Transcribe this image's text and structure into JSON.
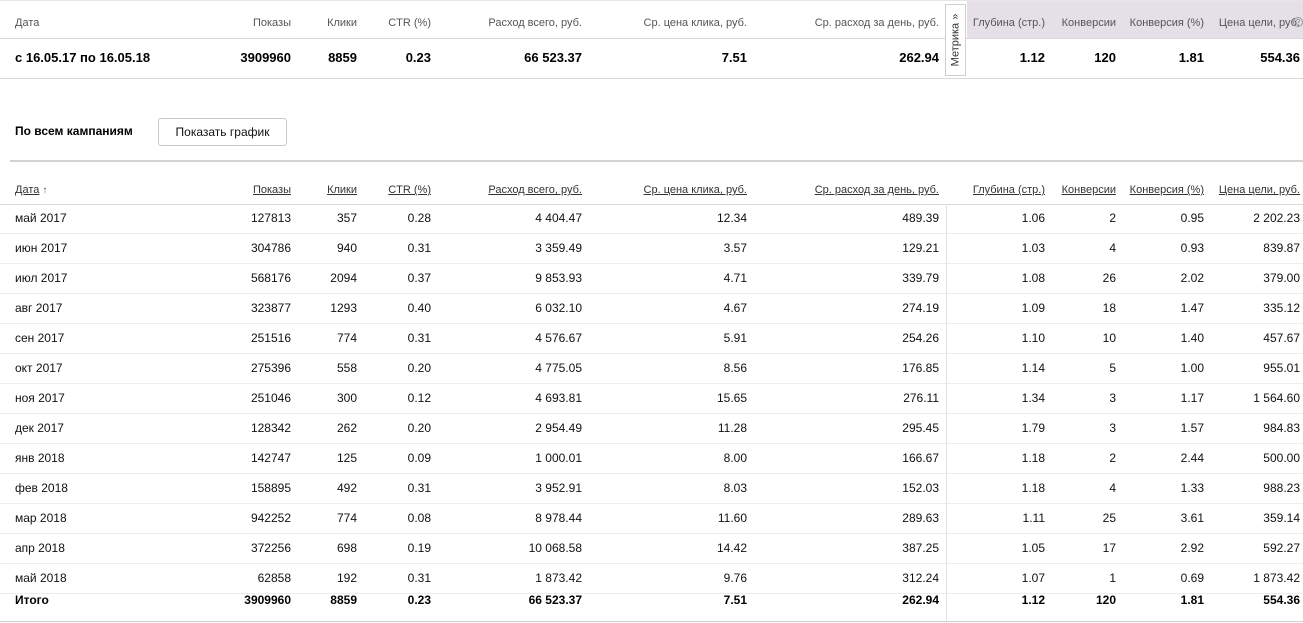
{
  "summary": {
    "headers": {
      "date": "Дата",
      "impressions": "Показы",
      "clicks": "Клики",
      "ctr": "CTR (%)",
      "spend": "Расход всего, руб.",
      "cpc": "Ср. цена клика, руб.",
      "daily": "Ср. расход за день, руб.",
      "depth": "Глубина (стр.)",
      "conversions": "Конверсии",
      "conv_rate": "Конверсия (%)",
      "goal_price": "Цена цели, руб."
    },
    "help_icon": "question-icon",
    "row": {
      "date": "с 16.05.17 по 16.05.18",
      "impressions": "3909960",
      "clicks": "8859",
      "ctr": "0.23",
      "spend": "66 523.37",
      "cpc": "7.51",
      "daily": "262.94",
      "depth": "1.12",
      "conversions": "120",
      "conv_rate": "1.81",
      "goal_price": "554.36"
    }
  },
  "metrika_tab": {
    "label": "Метрика »"
  },
  "section": {
    "title": "По всем кампаниям",
    "show_chart_label": "Показать график"
  },
  "detail": {
    "headers": {
      "date": "Дата",
      "sort_arrow": "↑",
      "impressions": "Показы",
      "clicks": "Клики",
      "ctr": "CTR (%)",
      "spend": "Расход всего, руб.",
      "cpc": "Ср. цена клика, руб.",
      "daily": "Ср. расход за день, руб.",
      "depth": "Глубина (стр.)",
      "conversions": "Конверсии",
      "conv_rate": "Конверсия (%)",
      "goal_price": "Цена цели, руб."
    },
    "rows": [
      {
        "date": "май 2017",
        "impressions": "127813",
        "clicks": "357",
        "ctr": "0.28",
        "spend": "4 404.47",
        "cpc": "12.34",
        "daily": "489.39",
        "depth": "1.06",
        "conversions": "2",
        "conv_rate": "0.95",
        "goal_price": "2 202.23"
      },
      {
        "date": "июн 2017",
        "impressions": "304786",
        "clicks": "940",
        "ctr": "0.31",
        "spend": "3 359.49",
        "cpc": "3.57",
        "daily": "129.21",
        "depth": "1.03",
        "conversions": "4",
        "conv_rate": "0.93",
        "goal_price": "839.87"
      },
      {
        "date": "июл 2017",
        "impressions": "568176",
        "clicks": "2094",
        "ctr": "0.37",
        "spend": "9 853.93",
        "cpc": "4.71",
        "daily": "339.79",
        "depth": "1.08",
        "conversions": "26",
        "conv_rate": "2.02",
        "goal_price": "379.00"
      },
      {
        "date": "авг 2017",
        "impressions": "323877",
        "clicks": "1293",
        "ctr": "0.40",
        "spend": "6 032.10",
        "cpc": "4.67",
        "daily": "274.19",
        "depth": "1.09",
        "conversions": "18",
        "conv_rate": "1.47",
        "goal_price": "335.12"
      },
      {
        "date": "сен 2017",
        "impressions": "251516",
        "clicks": "774",
        "ctr": "0.31",
        "spend": "4 576.67",
        "cpc": "5.91",
        "daily": "254.26",
        "depth": "1.10",
        "conversions": "10",
        "conv_rate": "1.40",
        "goal_price": "457.67"
      },
      {
        "date": "окт 2017",
        "impressions": "275396",
        "clicks": "558",
        "ctr": "0.20",
        "spend": "4 775.05",
        "cpc": "8.56",
        "daily": "176.85",
        "depth": "1.14",
        "conversions": "5",
        "conv_rate": "1.00",
        "goal_price": "955.01"
      },
      {
        "date": "ноя 2017",
        "impressions": "251046",
        "clicks": "300",
        "ctr": "0.12",
        "spend": "4 693.81",
        "cpc": "15.65",
        "daily": "276.11",
        "depth": "1.34",
        "conversions": "3",
        "conv_rate": "1.17",
        "goal_price": "1 564.60"
      },
      {
        "date": "дек 2017",
        "impressions": "128342",
        "clicks": "262",
        "ctr": "0.20",
        "spend": "2 954.49",
        "cpc": "11.28",
        "daily": "295.45",
        "depth": "1.79",
        "conversions": "3",
        "conv_rate": "1.57",
        "goal_price": "984.83"
      },
      {
        "date": "янв 2018",
        "impressions": "142747",
        "clicks": "125",
        "ctr": "0.09",
        "spend": "1 000.01",
        "cpc": "8.00",
        "daily": "166.67",
        "depth": "1.18",
        "conversions": "2",
        "conv_rate": "2.44",
        "goal_price": "500.00"
      },
      {
        "date": "фев 2018",
        "impressions": "158895",
        "clicks": "492",
        "ctr": "0.31",
        "spend": "3 952.91",
        "cpc": "8.03",
        "daily": "152.03",
        "depth": "1.18",
        "conversions": "4",
        "conv_rate": "1.33",
        "goal_price": "988.23"
      },
      {
        "date": "мар 2018",
        "impressions": "942252",
        "clicks": "774",
        "ctr": "0.08",
        "spend": "8 978.44",
        "cpc": "11.60",
        "daily": "289.63",
        "depth": "1.11",
        "conversions": "25",
        "conv_rate": "3.61",
        "goal_price": "359.14"
      },
      {
        "date": "апр 2018",
        "impressions": "372256",
        "clicks": "698",
        "ctr": "0.19",
        "spend": "10 068.58",
        "cpc": "14.42",
        "daily": "387.25",
        "depth": "1.05",
        "conversions": "17",
        "conv_rate": "2.92",
        "goal_price": "592.27"
      },
      {
        "date": "май 2018",
        "impressions": "62858",
        "clicks": "192",
        "ctr": "0.31",
        "spend": "1 873.42",
        "cpc": "9.76",
        "daily": "312.24",
        "depth": "1.07",
        "conversions": "1",
        "conv_rate": "0.69",
        "goal_price": "1 873.42"
      }
    ],
    "total": {
      "date": "Итого",
      "impressions": "3909960",
      "clicks": "8859",
      "ctr": "0.23",
      "spend": "66 523.37",
      "cpc": "7.51",
      "daily": "262.94",
      "depth": "1.12",
      "conversions": "120",
      "conv_rate": "1.81",
      "goal_price": "554.36"
    }
  },
  "colors": {
    "metrika_header_bg": "#e5dfe8",
    "divider": "#d9d9d9"
  }
}
